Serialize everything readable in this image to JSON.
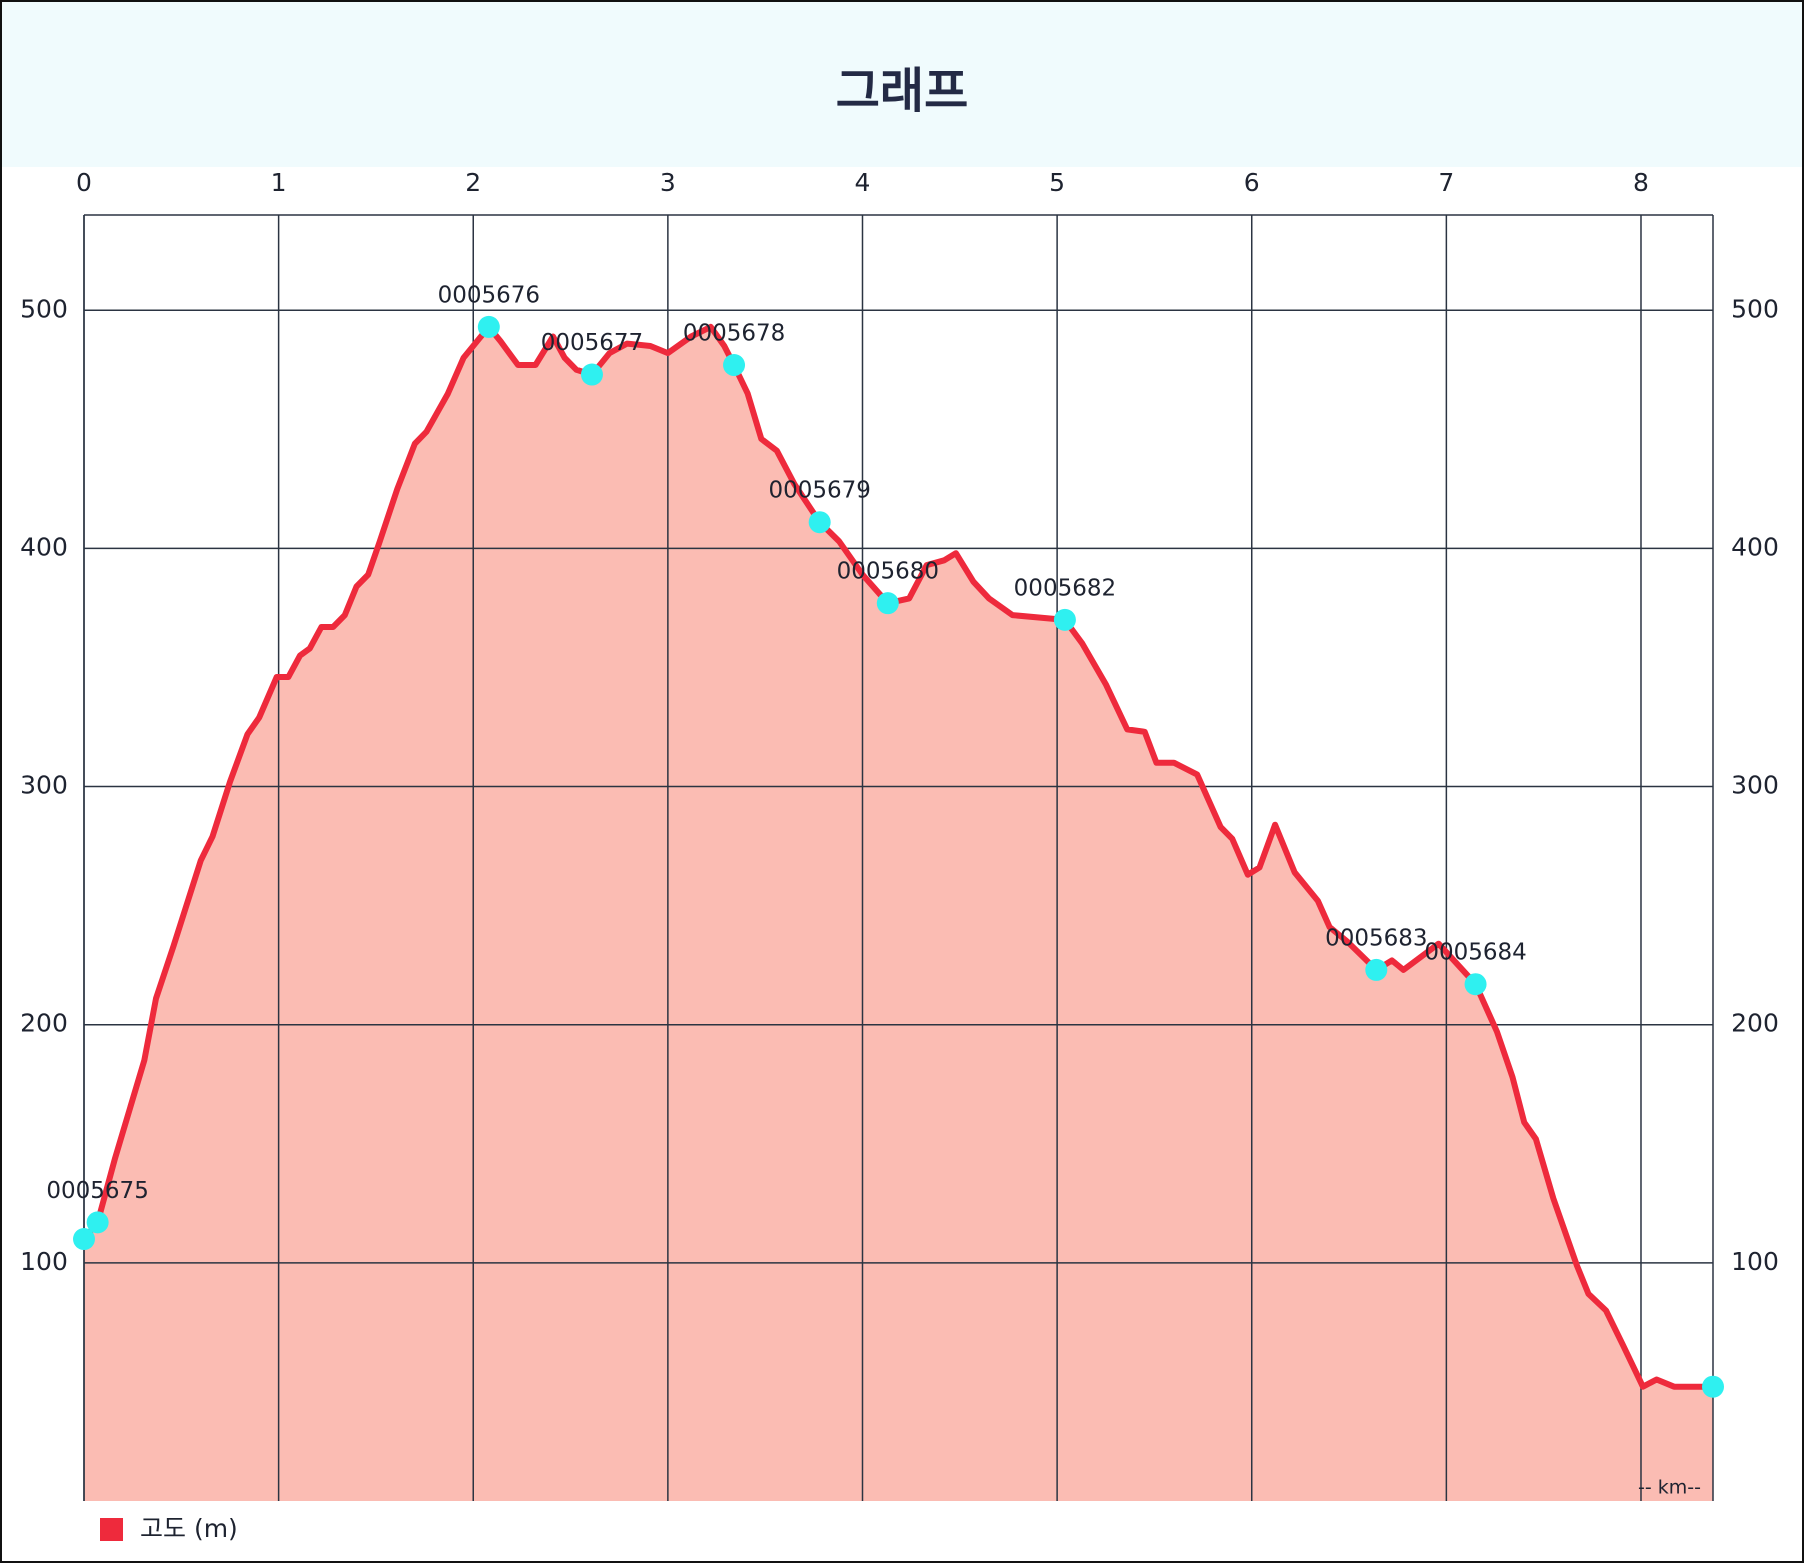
{
  "chart_data": {
    "type": "area",
    "title": "그래프",
    "xlabel": "-- km--",
    "x": [
      0,
      0.07,
      0.16,
      0.31,
      0.37,
      0.46,
      0.6,
      0.66,
      0.75,
      0.84,
      0.9,
      0.99,
      1.05,
      1.11,
      1.16,
      1.22,
      1.28,
      1.34,
      1.4,
      1.46,
      1.52,
      1.61,
      1.7,
      1.76,
      1.87,
      1.95,
      2.08,
      2.14,
      2.23,
      2.32,
      2.41,
      2.47,
      2.53,
      2.61,
      2.7,
      2.79,
      2.91,
      3.0,
      3.12,
      3.22,
      3.29,
      3.34,
      3.41,
      3.48,
      3.56,
      3.65,
      3.78,
      3.88,
      4.0,
      4.13,
      4.24,
      4.33,
      4.42,
      4.48,
      4.57,
      4.65,
      4.77,
      5.04,
      5.13,
      5.25,
      5.36,
      5.45,
      5.51,
      5.6,
      5.72,
      5.84,
      5.9,
      5.98,
      6.04,
      6.12,
      6.22,
      6.34,
      6.4,
      6.49,
      6.64,
      6.72,
      6.78,
      6.96,
      7.05,
      7.15,
      7.26,
      7.34,
      7.4,
      7.46,
      7.55,
      7.67,
      7.73,
      7.82,
      7.91,
      8.01,
      8.08,
      8.17,
      8.29,
      8.37
    ],
    "series": [
      {
        "name": "고도 (m)",
        "color": "#ee2a3c",
        "fill": "#fbbcb3",
        "values": [
          110,
          117,
          144,
          185,
          211,
          233,
          269,
          279,
          302,
          322,
          329,
          346,
          346,
          355,
          358,
          367,
          367,
          372,
          384,
          389,
          403,
          425,
          444,
          449,
          465,
          480,
          493,
          487,
          477,
          477,
          489,
          480,
          475,
          473,
          482,
          486,
          485,
          482,
          489,
          493,
          485,
          477,
          465,
          446,
          441,
          427,
          411,
          403,
          389,
          377,
          379,
          393,
          395,
          398,
          386,
          379,
          372,
          370,
          360,
          343,
          324,
          323,
          310,
          310,
          305,
          283,
          278,
          263,
          266,
          284,
          264,
          252,
          241,
          235,
          223,
          227,
          223,
          234,
          226,
          217,
          197,
          178,
          159,
          152,
          127,
          99,
          87,
          80,
          65,
          48,
          51,
          48,
          48,
          48
        ]
      }
    ],
    "points": {
      "color": "#2ff0f0",
      "x": [
        0,
        0.07,
        2.08,
        2.61,
        3.34,
        3.78,
        4.13,
        5.04,
        6.64,
        7.15,
        8.37
      ],
      "values": [
        110,
        117,
        493,
        473,
        477,
        411,
        377,
        370,
        223,
        217,
        48
      ],
      "labels": [
        null,
        "0005675",
        "0005676",
        "0005677",
        "0005678",
        "0005679",
        "0005680",
        "0005682",
        "0005683",
        "0005684",
        null
      ]
    },
    "xlim": [
      0,
      8.37
    ],
    "ylim": [
      0,
      540
    ],
    "xticks": [
      0,
      1,
      2,
      3,
      4,
      5,
      6,
      7,
      8
    ],
    "yticks": [
      100,
      200,
      300,
      400,
      500
    ],
    "grid": true
  }
}
